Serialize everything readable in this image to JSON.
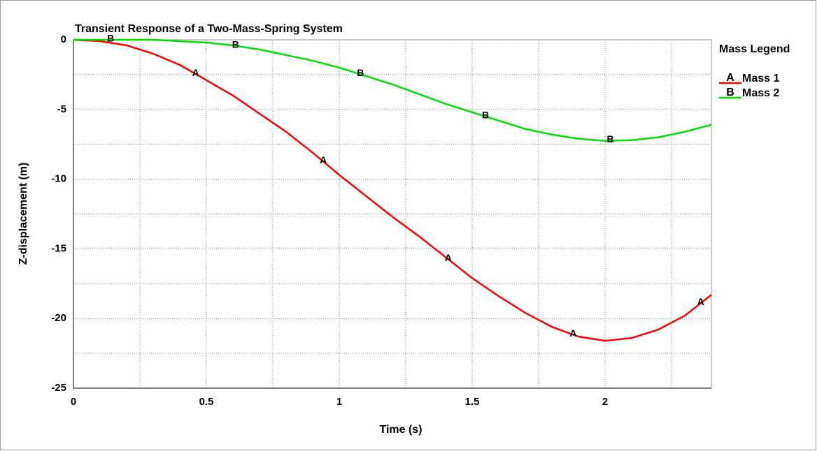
{
  "chart_data": {
    "type": "line",
    "title": "Transient Response of a Two-Mass-Spring System",
    "x_label": "Time (s)",
    "y_label": "Z-displacement (m)",
    "legend_title": "Mass Legend",
    "x": [
      0,
      0.1,
      0.2,
      0.3,
      0.4,
      0.5,
      0.6,
      0.7,
      0.8,
      0.9,
      1.0,
      1.1,
      1.2,
      1.3,
      1.4,
      1.5,
      1.6,
      1.7,
      1.8,
      1.9,
      2.0,
      2.1,
      2.2,
      2.3,
      2.4
    ],
    "series": [
      {
        "name": "Mass 1",
        "marker": "A",
        "color": "#ff0000",
        "values": [
          0,
          -0.1,
          -0.4,
          -1.0,
          -1.8,
          -2.9,
          -4.0,
          -5.3,
          -6.6,
          -8.1,
          -9.7,
          -11.2,
          -12.7,
          -14.1,
          -15.6,
          -17.1,
          -18.4,
          -19.6,
          -20.6,
          -21.3,
          -21.6,
          -21.4,
          -20.8,
          -19.8,
          -18.3
        ],
        "marker_x": [
          0.46,
          0.94,
          1.41,
          1.88,
          2.36
        ]
      },
      {
        "name": "Mass 2",
        "marker": "B",
        "color": "#00e000",
        "values": [
          0,
          0,
          0,
          0,
          -0.1,
          -0.2,
          -0.4,
          -0.7,
          -1.1,
          -1.5,
          -2.0,
          -2.6,
          -3.2,
          -3.9,
          -4.6,
          -5.2,
          -5.8,
          -6.4,
          -6.8,
          -7.1,
          -7.25,
          -7.2,
          -7.0,
          -6.6,
          -6.1
        ],
        "marker_x": [
          0.14,
          0.61,
          1.08,
          1.55,
          2.02
        ]
      }
    ],
    "xlim": [
      0,
      2.4
    ],
    "ylim": [
      -25,
      0
    ],
    "xticks": [
      0,
      0.5,
      1,
      1.5,
      2
    ],
    "yticks": [
      0,
      -5,
      -10,
      -15,
      -20,
      -25
    ],
    "x_minor_ticks": [
      0.25,
      0.75,
      1.25,
      1.75,
      2.25
    ],
    "y_minor_ticks": [
      -2.5,
      -7.5,
      -12.5,
      -17.5,
      -22.5
    ],
    "grid": true,
    "legend": "right"
  }
}
